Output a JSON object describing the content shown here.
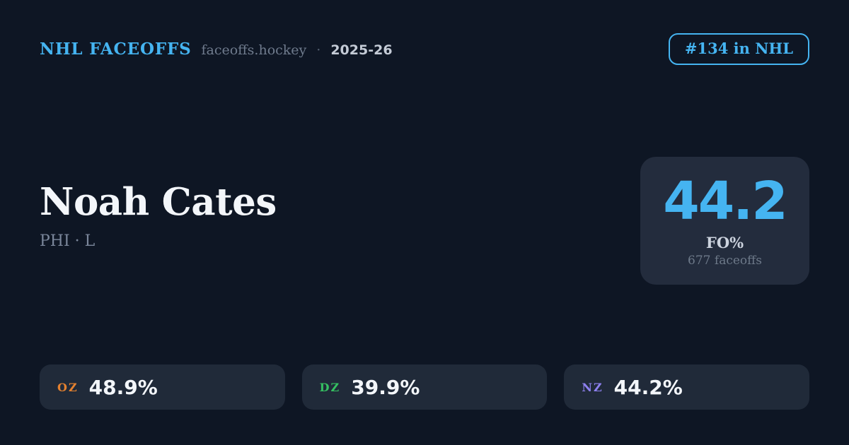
{
  "header": {
    "brand": "NHL FACEOFFS",
    "site": "faceoffs.hockey",
    "separator": "·",
    "season": "2025-26",
    "rank_badge": "#134 in NHL"
  },
  "player": {
    "name": "Noah Cates",
    "team_position": "PHI · L"
  },
  "summary": {
    "value": "44.2",
    "label": "FO%",
    "subtext": "677 faceoffs"
  },
  "zones": [
    {
      "label": "OZ",
      "value": "48.9%",
      "color": "#e5812f"
    },
    {
      "label": "DZ",
      "value": "39.9%",
      "color": "#35c061"
    },
    {
      "label": "NZ",
      "value": "44.2%",
      "color": "#8d80ef"
    }
  ],
  "colors": {
    "background": "#0e1624",
    "panel": "#232c3d",
    "pill": "#202a39",
    "accent_blue": "#45b4f1",
    "text_primary": "#f3f6fa",
    "text_muted": "#6f7b8d"
  }
}
